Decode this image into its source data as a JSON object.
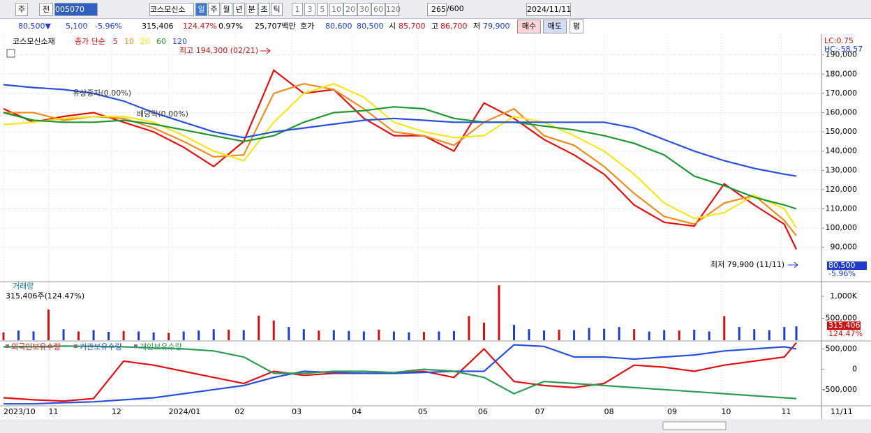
{
  "toolbar": {
    "period": "주",
    "range": "전",
    "code": "005070",
    "name": "코스모신소",
    "units": [
      "일",
      "주",
      "월",
      "년",
      "분",
      "초",
      "틱"
    ],
    "steps": [
      "1",
      "3",
      "5",
      "10",
      "20",
      "30",
      "60",
      "120"
    ],
    "count": "265",
    "max": "/600",
    "date": "2024/11/11"
  },
  "quote": {
    "price": "80,500▼",
    "change": "5,100",
    "rate": "-5.96%",
    "volume": "315,406",
    "vol_rate": "124.47%",
    "turnover": "0.97%",
    "amount": "25,707백만",
    "ask_label": "호가",
    "ask": "80,600",
    "bid": "80,500",
    "open_label": "시",
    "open": "85,700",
    "high_label": "고",
    "high": "86,700",
    "low_label": "저",
    "low": "79,900",
    "buy": "매수",
    "sell": "매도",
    "avg": "평"
  },
  "chart_data": [
    {
      "type": "line",
      "title": "코스모신소재",
      "legend_title": "종가 단순",
      "lc": "LC:0.75",
      "hc": "HC:-58.57",
      "annotations": [
        "최고 194,300 (02/21)",
        "최저 79,900 (11/11)",
        "유상증자(0.00%)",
        "배당락(0.00%)"
      ],
      "last_label": "80,500",
      "last_rate": "-5.96%",
      "last_date": "11/11",
      "x": [
        0,
        10,
        20,
        30,
        40,
        50,
        60,
        70,
        80,
        90,
        100,
        110,
        120,
        130,
        140,
        150,
        160,
        170,
        180,
        190,
        200,
        210,
        220,
        230,
        240,
        250,
        260,
        264
      ],
      "xlim": [
        0,
        265
      ],
      "xticks": [
        {
          "value": 0,
          "label": "2023/10"
        },
        {
          "value": 15,
          "label": "11"
        },
        {
          "value": 36,
          "label": "12"
        },
        {
          "value": 55,
          "label": "2024/01"
        },
        {
          "value": 77,
          "label": "02"
        },
        {
          "value": 96,
          "label": "03"
        },
        {
          "value": 116,
          "label": "04"
        },
        {
          "value": 138,
          "label": "05"
        },
        {
          "value": 158,
          "label": "06"
        },
        {
          "value": 177,
          "label": "07"
        },
        {
          "value": 200,
          "label": "08"
        },
        {
          "value": 221,
          "label": "09"
        },
        {
          "value": 239,
          "label": "10"
        },
        {
          "value": 259,
          "label": "11"
        }
      ],
      "ylim": [
        72500,
        199300
      ],
      "yticks": [
        {
          "value": 90000,
          "label": "90,000"
        },
        {
          "value": 100000,
          "label": "100,000"
        },
        {
          "value": 110000,
          "label": "110,000"
        },
        {
          "value": 120000,
          "label": "120,000"
        },
        {
          "value": 130000,
          "label": "130,000"
        },
        {
          "value": 140000,
          "label": "140,000"
        },
        {
          "value": 150000,
          "label": "150,000"
        },
        {
          "value": 160000,
          "label": "160,000"
        },
        {
          "value": 170000,
          "label": "170,000"
        },
        {
          "value": 180000,
          "label": "180,000"
        },
        {
          "value": 190000,
          "label": "190,000"
        }
      ],
      "grid": true,
      "series": [
        {
          "name": "5",
          "color": "#e01010",
          "values": [
            162000,
            155000,
            158000,
            160000,
            155000,
            150000,
            142000,
            132000,
            145000,
            182000,
            170000,
            172000,
            157000,
            148000,
            148000,
            140000,
            165000,
            157000,
            146000,
            138000,
            128000,
            112000,
            103000,
            101000,
            123000,
            112000,
            102000,
            89000
          ]
        },
        {
          "name": "10",
          "color": "#f08c1e",
          "values": [
            160000,
            160000,
            156000,
            158000,
            157000,
            152000,
            145000,
            137000,
            138000,
            170000,
            175000,
            172000,
            162000,
            150000,
            148000,
            143000,
            155000,
            162000,
            148000,
            143000,
            132000,
            118000,
            106000,
            102000,
            113000,
            117000,
            104000,
            96000
          ]
        },
        {
          "name": "20",
          "color": "#f5e61e",
          "values": [
            153800,
            155000,
            157000,
            158000,
            158000,
            155000,
            148000,
            140000,
            135000,
            155000,
            170000,
            175000,
            168000,
            155000,
            150000,
            147000,
            148000,
            158000,
            155000,
            148000,
            140000,
            128000,
            113000,
            105000,
            108000,
            117000,
            110000,
            100000
          ]
        },
        {
          "name": "60",
          "color": "#1e9632",
          "values": [
            160000,
            156000,
            155000,
            155000,
            156000,
            154000,
            151000,
            148000,
            145000,
            148000,
            155000,
            160000,
            161000,
            163000,
            162000,
            157000,
            155000,
            155000,
            153000,
            151000,
            148000,
            144000,
            138000,
            127000,
            122000,
            116000,
            112000,
            110000
          ]
        },
        {
          "name": "120",
          "color": "#2850dc",
          "values": [
            174500,
            173000,
            172000,
            170000,
            166000,
            160000,
            155000,
            150000,
            147000,
            150000,
            152000,
            154000,
            156000,
            157000,
            156000,
            155000,
            155000,
            155000,
            155000,
            155000,
            155000,
            152000,
            146000,
            140000,
            135000,
            131000,
            128000,
            127000
          ]
        }
      ]
    },
    {
      "type": "bar",
      "title": "거래량",
      "subtitle": "315,406주(124.47%)",
      "last_label": "315,406",
      "last_rate": "124.47%",
      "x": [
        0,
        5,
        10,
        15,
        20,
        25,
        30,
        35,
        40,
        45,
        50,
        55,
        60,
        65,
        70,
        75,
        80,
        85,
        90,
        95,
        100,
        105,
        110,
        115,
        120,
        125,
        130,
        135,
        140,
        145,
        150,
        155,
        160,
        165,
        170,
        175,
        180,
        185,
        190,
        195,
        200,
        205,
        210,
        215,
        220,
        225,
        230,
        235,
        240,
        245,
        250,
        255,
        260,
        264
      ],
      "xlim": [
        0,
        265
      ],
      "ylim": [
        0,
        1300000
      ],
      "yticks": [
        {
          "value": 500000,
          "label": "500,000"
        },
        {
          "value": 1000000,
          "label": "1,000K"
        }
      ],
      "values": [
        180000,
        220000,
        200000,
        700000,
        250000,
        200000,
        230000,
        190000,
        210000,
        200000,
        180000,
        170000,
        200000,
        220000,
        250000,
        240000,
        230000,
        560000,
        450000,
        300000,
        250000,
        220000,
        230000,
        210000,
        200000,
        240000,
        200000,
        180000,
        190000,
        200000,
        210000,
        550000,
        400000,
        1250000,
        350000,
        250000,
        220000,
        240000,
        230000,
        280000,
        260000,
        300000,
        250000,
        200000,
        230000,
        220000,
        240000,
        200000,
        550000,
        300000,
        250000,
        230000,
        300000,
        315406
      ],
      "colors": [
        "#d01010",
        "#1e3cc8",
        "#1e3cc8",
        "#d01010",
        "#1e3cc8",
        "#d01010",
        "#1e3cc8",
        "#1e3cc8",
        "#d01010",
        "#1e3cc8",
        "#1e3cc8",
        "#d01010",
        "#1e3cc8",
        "#1e3cc8",
        "#1e3cc8",
        "#d01010",
        "#1e3cc8",
        "#d01010",
        "#d01010",
        "#1e3cc8",
        "#1e3cc8",
        "#d01010",
        "#1e3cc8",
        "#1e3cc8",
        "#1e3cc8",
        "#d01010",
        "#1e3cc8",
        "#1e3cc8",
        "#d01010",
        "#1e3cc8",
        "#1e3cc8",
        "#d01010",
        "#d01010",
        "#d01010",
        "#1e3cc8",
        "#1e3cc8",
        "#1e3cc8",
        "#d01010",
        "#1e3cc8",
        "#1e3cc8",
        "#1e3cc8",
        "#1e3cc8",
        "#d01010",
        "#1e3cc8",
        "#1e3cc8",
        "#d01010",
        "#1e3cc8",
        "#1e3cc8",
        "#d01010",
        "#1e3cc8",
        "#1e3cc8",
        "#1e3cc8",
        "#1e3cc8",
        "#1e3cc8"
      ]
    },
    {
      "type": "line",
      "x": [
        0,
        10,
        20,
        30,
        40,
        50,
        60,
        70,
        80,
        90,
        100,
        110,
        120,
        130,
        140,
        150,
        160,
        170,
        180,
        190,
        200,
        210,
        220,
        230,
        240,
        250,
        260,
        264
      ],
      "xlim": [
        0,
        265
      ],
      "ylim": [
        -880000,
        660000
      ],
      "yticks": [
        {
          "value": 500000,
          "label": "500,000"
        },
        0,
        {
          "value": -500000,
          "label": "-500,000"
        }
      ],
      "series": [
        {
          "name": "외국인보유수량",
          "color": "#e01010",
          "values": [
            -700000,
            -750000,
            -780000,
            -720000,
            200000,
            100000,
            -50000,
            -200000,
            -350000,
            -50000,
            -150000,
            -100000,
            -100000,
            -100000,
            -50000,
            -200000,
            500000,
            -300000,
            -400000,
            -450000,
            -350000,
            100000,
            50000,
            -50000,
            100000,
            200000,
            300000,
            650000
          ]
        },
        {
          "name": "기관보유수량",
          "color": "#2850dc",
          "values": [
            -850000,
            -850000,
            -820000,
            -800000,
            -750000,
            -700000,
            -600000,
            -500000,
            -400000,
            -200000,
            -50000,
            -80000,
            -100000,
            -100000,
            -80000,
            -50000,
            -50000,
            600000,
            560000,
            300000,
            300000,
            250000,
            300000,
            350000,
            450000,
            500000,
            550000,
            500000
          ]
        },
        {
          "name": "개인보유수량",
          "color": "#2e9a5a",
          "values": [
            550000,
            550000,
            570000,
            560000,
            550000,
            520000,
            500000,
            450000,
            300000,
            -100000,
            -100000,
            -50000,
            -50000,
            -80000,
            0,
            -50000,
            -200000,
            -600000,
            -300000,
            -350000,
            -400000,
            -450000,
            -500000,
            -550000,
            -600000,
            -650000,
            -700000,
            -720000
          ]
        }
      ]
    }
  ]
}
